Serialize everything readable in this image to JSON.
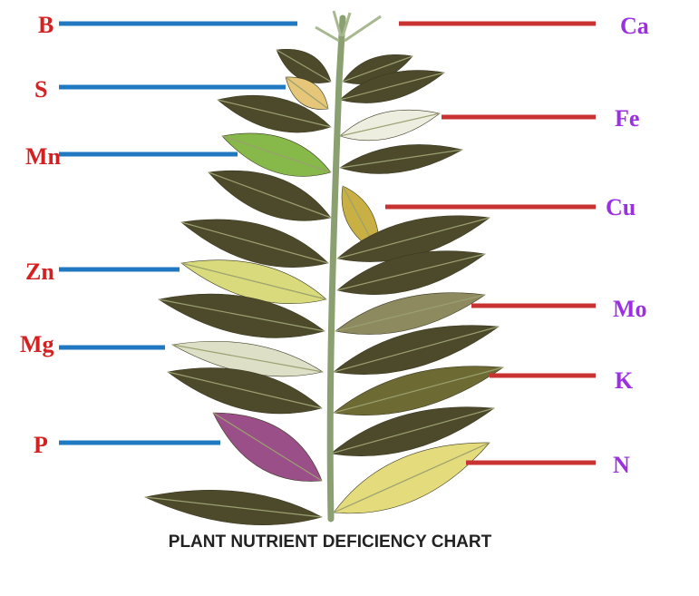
{
  "title": "PLANT NUTRIENT DEFICIENCY CHART",
  "left_labels": [
    "B",
    "S",
    "Mn",
    "Zn",
    "Mg",
    "P"
  ],
  "right_labels": [
    "Ca",
    "Fe",
    "Cu",
    "Mo",
    "K",
    "N"
  ]
}
